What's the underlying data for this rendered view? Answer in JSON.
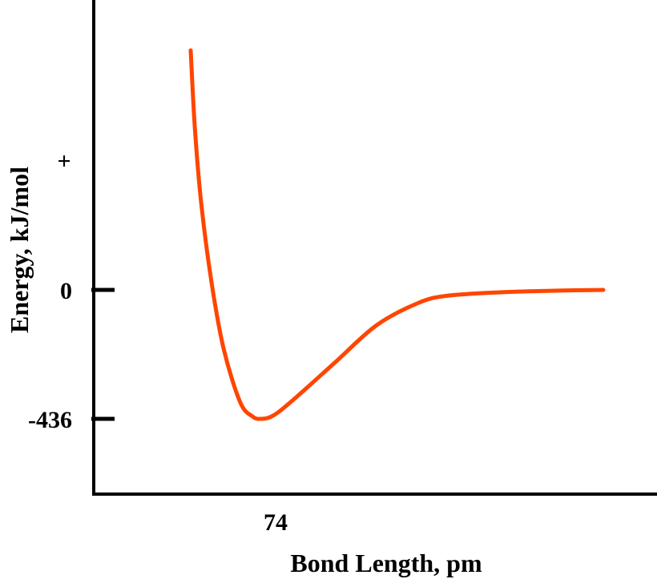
{
  "chart_data": {
    "type": "line",
    "title": "",
    "xlabel": "Bond Length, pm",
    "ylabel": "Energy, kJ/mol",
    "x_ticks": [
      {
        "value": 74,
        "label": "74"
      }
    ],
    "y_ticks": [
      {
        "value": 0,
        "label": "0"
      },
      {
        "value": -436,
        "label": "-436"
      }
    ],
    "y_positive_marker": "+",
    "xlim": [
      -0.18,
      1.0
    ],
    "ylim": [
      -700,
      1000
    ],
    "grid": false,
    "legend": "none",
    "series": [
      {
        "color": "#ff4500",
        "points": [
          [
            0.0,
            810
          ],
          [
            0.01,
            550
          ],
          [
            0.025,
            300
          ],
          [
            0.05,
            30
          ],
          [
            0.08,
            -200
          ],
          [
            0.12,
            -380
          ],
          [
            0.15,
            -428
          ],
          [
            0.17,
            -436
          ],
          [
            0.2,
            -425
          ],
          [
            0.25,
            -370
          ],
          [
            0.35,
            -245
          ],
          [
            0.45,
            -120
          ],
          [
            0.55,
            -45
          ],
          [
            0.62,
            -20
          ],
          [
            0.75,
            -8
          ],
          [
            0.9,
            -2
          ],
          [
            1.0,
            0
          ]
        ]
      }
    ]
  }
}
